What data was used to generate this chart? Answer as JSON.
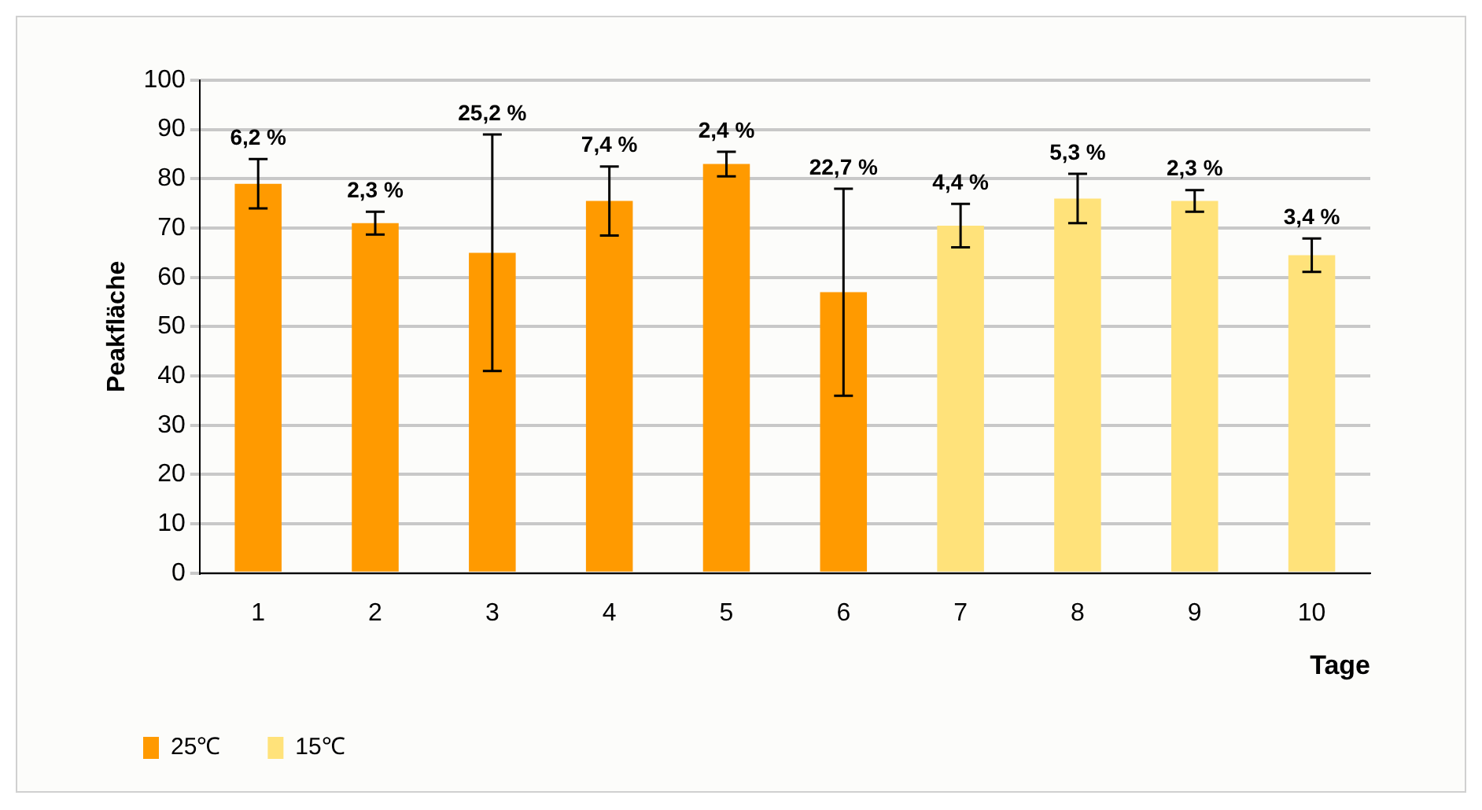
{
  "chart_data": {
    "type": "bar",
    "xlabel": "Tage",
    "ylabel": "Peakfläche",
    "categories": [
      "1",
      "2",
      "3",
      "4",
      "5",
      "6",
      "7",
      "8",
      "9",
      "10"
    ],
    "series": [
      {
        "name": "25℃",
        "color": "#ff9a00",
        "values": [
          79,
          71,
          65,
          75.5,
          83,
          57,
          null,
          null,
          null,
          null
        ],
        "errors": [
          5,
          2.3,
          24,
          7,
          2.5,
          21,
          null,
          null,
          null,
          null
        ]
      },
      {
        "name": "15℃",
        "color": "#ffe27a",
        "values": [
          null,
          null,
          null,
          null,
          null,
          null,
          70.5,
          76,
          75.5,
          64.5
        ],
        "errors": [
          null,
          null,
          null,
          null,
          null,
          null,
          4.4,
          5,
          2.2,
          3.4
        ]
      }
    ],
    "annotations": [
      {
        "text": "6,2 %",
        "x": "1",
        "y": 84
      },
      {
        "text": "2,3 %",
        "x": "2",
        "y": 73.3
      },
      {
        "text": "25,2 %",
        "x": "3",
        "y": 89
      },
      {
        "text": "7,4 %",
        "x": "4",
        "y": 82.5
      },
      {
        "text": "2,4 %",
        "x": "5",
        "y": 85.5
      },
      {
        "text": "22,7 %",
        "x": "6",
        "y": 78
      },
      {
        "text": "4,4 %",
        "x": "7",
        "y": 74.9
      },
      {
        "text": "5,3 %",
        "x": "8",
        "y": 81
      },
      {
        "text": "2,3 %",
        "x": "9",
        "y": 77.7
      },
      {
        "text": "3,4 %",
        "x": "10",
        "y": 67.9
      }
    ],
    "ylim": [
      0,
      100
    ],
    "yticks": [
      0,
      10,
      20,
      30,
      40,
      50,
      60,
      70,
      80,
      90,
      100
    ],
    "grid": "y",
    "legend": "bottom left"
  }
}
